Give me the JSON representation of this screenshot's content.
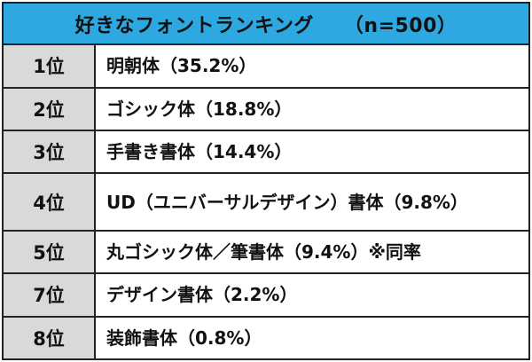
{
  "header": {
    "title": "好きなフォントランキング",
    "sample": "（n=500）"
  },
  "rows": [
    {
      "rank": "1位",
      "name": "明朝体（35.2%）"
    },
    {
      "rank": "2位",
      "name": "ゴシック体（18.8%）"
    },
    {
      "rank": "3位",
      "name": "手書き書体（14.4%）"
    },
    {
      "rank": "4位",
      "name": "UD（ユニバーサルデザイン）書体（9.8%）"
    },
    {
      "rank": "5位",
      "name": "丸ゴシック体／筆書体（9.4%）※同率"
    },
    {
      "rank": "7位",
      "name": "デザイン書体（2.2%）"
    },
    {
      "rank": "8位",
      "name": "装飾書体（0.8%）"
    }
  ],
  "colors": {
    "header_bg": "#2ea8e0",
    "rank_bg": "#d9d9d9",
    "border": "#222222"
  }
}
